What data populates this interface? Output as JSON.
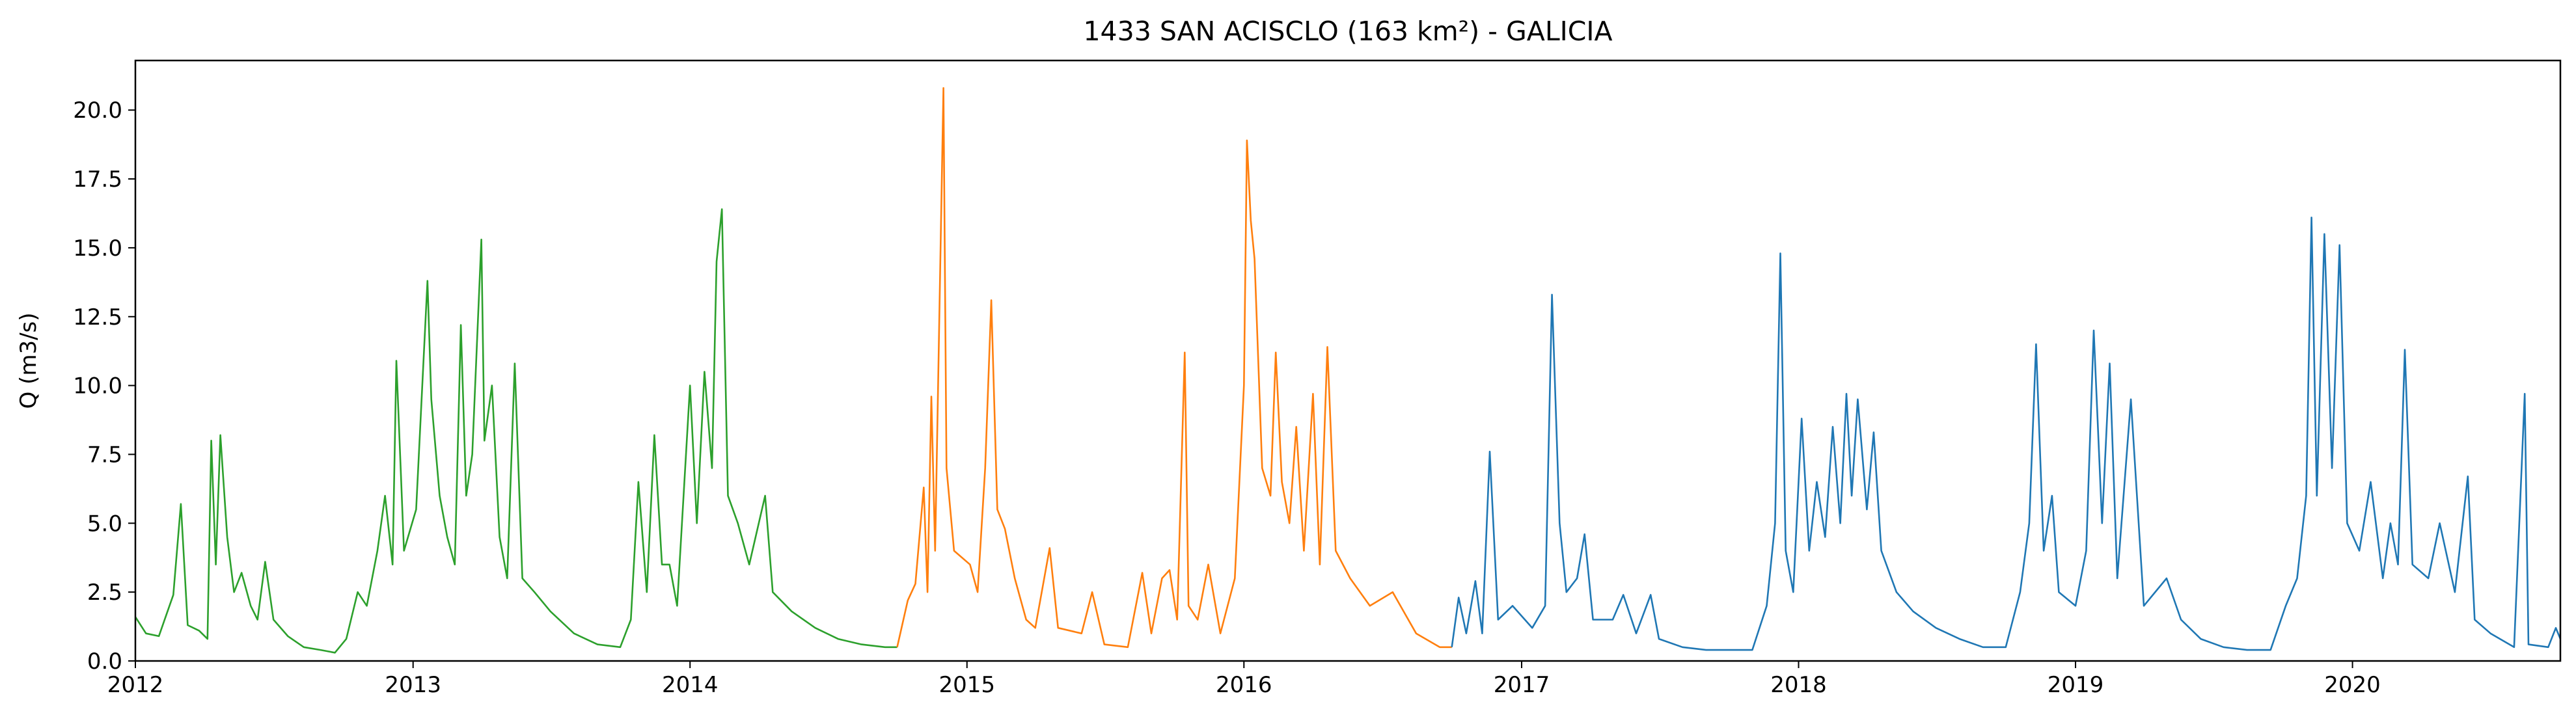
{
  "chart_data": {
    "type": "line",
    "title": "1433 SAN ACISCLO (163 km²) - GALICIA",
    "xlabel": "",
    "ylabel": "Q (m3/s)",
    "xlim": [
      "2012-01-01",
      "2020-10-01"
    ],
    "ylim": [
      0.0,
      21.8
    ],
    "grid": false,
    "legend": "none",
    "x_ticks": [
      "2012",
      "2013",
      "2014",
      "2015",
      "2016",
      "2017",
      "2018",
      "2019",
      "2020"
    ],
    "y_ticks": [
      "0.0",
      "2.5",
      "5.0",
      "7.5",
      "10.0",
      "12.5",
      "15.0",
      "17.5",
      "20.0"
    ],
    "series": [
      {
        "color": "#2ca02c",
        "points": [
          [
            "2012-01-01",
            1.6
          ],
          [
            "2012-01-15",
            1.0
          ],
          [
            "2012-02-01",
            0.9
          ],
          [
            "2012-02-20",
            2.4
          ],
          [
            "2012-03-01",
            5.7
          ],
          [
            "2012-03-10",
            1.3
          ],
          [
            "2012-03-25",
            1.1
          ],
          [
            "2012-04-05",
            0.8
          ],
          [
            "2012-04-10",
            8.0
          ],
          [
            "2012-04-16",
            3.5
          ],
          [
            "2012-04-22",
            8.2
          ],
          [
            "2012-05-01",
            4.5
          ],
          [
            "2012-05-10",
            2.5
          ],
          [
            "2012-05-20",
            3.2
          ],
          [
            "2012-06-01",
            2.0
          ],
          [
            "2012-06-10",
            1.5
          ],
          [
            "2012-06-20",
            3.6
          ],
          [
            "2012-07-01",
            1.5
          ],
          [
            "2012-07-20",
            0.9
          ],
          [
            "2012-08-10",
            0.5
          ],
          [
            "2012-09-01",
            0.4
          ],
          [
            "2012-09-20",
            0.3
          ],
          [
            "2012-10-05",
            0.8
          ],
          [
            "2012-10-20",
            2.5
          ],
          [
            "2012-11-01",
            2.0
          ],
          [
            "2012-11-15",
            4.0
          ],
          [
            "2012-11-25",
            6.0
          ],
          [
            "2012-12-05",
            3.5
          ],
          [
            "2012-12-10",
            10.9
          ],
          [
            "2012-12-20",
            4.0
          ],
          [
            "2013-01-05",
            5.5
          ],
          [
            "2013-01-20",
            13.8
          ],
          [
            "2013-01-25",
            9.5
          ],
          [
            "2013-02-05",
            6.0
          ],
          [
            "2013-02-15",
            4.5
          ],
          [
            "2013-02-25",
            3.5
          ],
          [
            "2013-03-05",
            12.2
          ],
          [
            "2013-03-12",
            6.0
          ],
          [
            "2013-03-20",
            7.5
          ],
          [
            "2013-04-01",
            15.3
          ],
          [
            "2013-04-05",
            8.0
          ],
          [
            "2013-04-15",
            10.0
          ],
          [
            "2013-04-25",
            4.5
          ],
          [
            "2013-05-05",
            3.0
          ],
          [
            "2013-05-15",
            10.8
          ],
          [
            "2013-05-25",
            3.0
          ],
          [
            "2013-06-10",
            2.5
          ],
          [
            "2013-07-01",
            1.8
          ],
          [
            "2013-08-01",
            1.0
          ],
          [
            "2013-09-01",
            0.6
          ],
          [
            "2013-10-01",
            0.5
          ],
          [
            "2013-10-15",
            1.5
          ],
          [
            "2013-10-25",
            6.5
          ],
          [
            "2013-11-05",
            2.5
          ],
          [
            "2013-11-15",
            8.2
          ],
          [
            "2013-11-25",
            3.5
          ],
          [
            "2013-12-05",
            3.5
          ],
          [
            "2013-12-15",
            2.0
          ],
          [
            "2014-01-01",
            10.0
          ],
          [
            "2014-01-10",
            5.0
          ],
          [
            "2014-01-20",
            10.5
          ],
          [
            "2014-01-30",
            7.0
          ],
          [
            "2014-02-05",
            14.5
          ],
          [
            "2014-02-12",
            16.4
          ],
          [
            "2014-02-20",
            6.0
          ],
          [
            "2014-03-05",
            5.0
          ],
          [
            "2014-03-20",
            3.5
          ],
          [
            "2014-04-10",
            6.0
          ],
          [
            "2014-04-20",
            2.5
          ],
          [
            "2014-05-15",
            1.8
          ],
          [
            "2014-06-15",
            1.2
          ],
          [
            "2014-07-15",
            0.8
          ],
          [
            "2014-08-15",
            0.6
          ],
          [
            "2014-09-15",
            0.5
          ],
          [
            "2014-10-01",
            0.5
          ]
        ]
      },
      {
        "color": "#ff7f0e",
        "points": [
          [
            "2014-10-01",
            0.5
          ],
          [
            "2014-10-15",
            2.2
          ],
          [
            "2014-10-25",
            2.8
          ],
          [
            "2014-11-05",
            6.3
          ],
          [
            "2014-11-10",
            2.5
          ],
          [
            "2014-11-15",
            9.6
          ],
          [
            "2014-11-20",
            4.0
          ],
          [
            "2014-12-01",
            20.8
          ],
          [
            "2014-12-05",
            7.0
          ],
          [
            "2014-12-15",
            4.0
          ],
          [
            "2015-01-05",
            3.5
          ],
          [
            "2015-01-15",
            2.5
          ],
          [
            "2015-01-25",
            7.0
          ],
          [
            "2015-02-02",
            13.1
          ],
          [
            "2015-02-10",
            5.5
          ],
          [
            "2015-02-20",
            4.8
          ],
          [
            "2015-03-05",
            3.0
          ],
          [
            "2015-03-20",
            1.5
          ],
          [
            "2015-04-01",
            1.2
          ],
          [
            "2015-04-20",
            4.1
          ],
          [
            "2015-05-01",
            1.2
          ],
          [
            "2015-06-01",
            1.0
          ],
          [
            "2015-06-15",
            2.5
          ],
          [
            "2015-07-01",
            0.6
          ],
          [
            "2015-08-01",
            0.5
          ],
          [
            "2015-08-20",
            3.2
          ],
          [
            "2015-09-01",
            1.0
          ],
          [
            "2015-09-15",
            3.0
          ],
          [
            "2015-09-25",
            3.3
          ],
          [
            "2015-10-05",
            1.5
          ],
          [
            "2015-10-15",
            11.2
          ],
          [
            "2015-10-20",
            2.0
          ],
          [
            "2015-11-01",
            1.5
          ],
          [
            "2015-11-15",
            3.5
          ],
          [
            "2015-12-01",
            1.0
          ],
          [
            "2015-12-20",
            3.0
          ],
          [
            "2016-01-01",
            10.0
          ],
          [
            "2016-01-05",
            18.9
          ],
          [
            "2016-01-10",
            16.0
          ],
          [
            "2016-01-15",
            14.6
          ],
          [
            "2016-01-25",
            7.0
          ],
          [
            "2016-02-05",
            6.0
          ],
          [
            "2016-02-12",
            11.2
          ],
          [
            "2016-02-20",
            6.5
          ],
          [
            "2016-03-01",
            5.0
          ],
          [
            "2016-03-10",
            8.5
          ],
          [
            "2016-03-20",
            4.0
          ],
          [
            "2016-04-01",
            9.7
          ],
          [
            "2016-04-10",
            3.5
          ],
          [
            "2016-04-20",
            11.4
          ],
          [
            "2016-05-01",
            4.0
          ],
          [
            "2016-05-20",
            3.0
          ],
          [
            "2016-06-15",
            2.0
          ],
          [
            "2016-07-15",
            2.5
          ],
          [
            "2016-08-15",
            1.0
          ],
          [
            "2016-09-15",
            0.5
          ],
          [
            "2016-10-01",
            0.5
          ]
        ]
      },
      {
        "color": "#1f77b4",
        "points": [
          [
            "2016-10-01",
            0.5
          ],
          [
            "2016-10-10",
            2.3
          ],
          [
            "2016-10-20",
            1.0
          ],
          [
            "2016-11-01",
            2.9
          ],
          [
            "2016-11-10",
            1.0
          ],
          [
            "2016-11-20",
            7.6
          ],
          [
            "2016-12-01",
            1.5
          ],
          [
            "2016-12-20",
            2.0
          ],
          [
            "2017-01-15",
            1.2
          ],
          [
            "2017-02-01",
            2.0
          ],
          [
            "2017-02-10",
            13.3
          ],
          [
            "2017-02-20",
            5.0
          ],
          [
            "2017-03-01",
            2.5
          ],
          [
            "2017-03-15",
            3.0
          ],
          [
            "2017-03-25",
            4.6
          ],
          [
            "2017-04-05",
            1.5
          ],
          [
            "2017-05-01",
            1.5
          ],
          [
            "2017-05-15",
            2.4
          ],
          [
            "2017-06-01",
            1.0
          ],
          [
            "2017-06-20",
            2.4
          ],
          [
            "2017-07-01",
            0.8
          ],
          [
            "2017-08-01",
            0.5
          ],
          [
            "2017-09-01",
            0.4
          ],
          [
            "2017-10-01",
            0.4
          ],
          [
            "2017-11-01",
            0.4
          ],
          [
            "2017-11-20",
            2.0
          ],
          [
            "2017-12-01",
            5.0
          ],
          [
            "2017-12-08",
            14.8
          ],
          [
            "2017-12-15",
            4.0
          ],
          [
            "2017-12-25",
            2.5
          ],
          [
            "2018-01-05",
            8.8
          ],
          [
            "2018-01-15",
            4.0
          ],
          [
            "2018-01-25",
            6.5
          ],
          [
            "2018-02-05",
            4.5
          ],
          [
            "2018-02-15",
            8.5
          ],
          [
            "2018-02-25",
            5.0
          ],
          [
            "2018-03-05",
            9.7
          ],
          [
            "2018-03-12",
            6.0
          ],
          [
            "2018-03-20",
            9.5
          ],
          [
            "2018-04-01",
            5.5
          ],
          [
            "2018-04-10",
            8.3
          ],
          [
            "2018-04-20",
            4.0
          ],
          [
            "2018-05-10",
            2.5
          ],
          [
            "2018-06-01",
            1.8
          ],
          [
            "2018-07-01",
            1.2
          ],
          [
            "2018-08-01",
            0.8
          ],
          [
            "2018-09-01",
            0.5
          ],
          [
            "2018-10-01",
            0.5
          ],
          [
            "2018-10-20",
            2.5
          ],
          [
            "2018-11-01",
            5.0
          ],
          [
            "2018-11-10",
            11.5
          ],
          [
            "2018-11-20",
            4.0
          ],
          [
            "2018-12-01",
            6.0
          ],
          [
            "2018-12-10",
            2.5
          ],
          [
            "2019-01-01",
            2.0
          ],
          [
            "2019-01-15",
            4.0
          ],
          [
            "2019-01-25",
            12.0
          ],
          [
            "2019-02-05",
            5.0
          ],
          [
            "2019-02-15",
            10.8
          ],
          [
            "2019-02-25",
            3.0
          ],
          [
            "2019-03-15",
            9.5
          ],
          [
            "2019-04-01",
            2.0
          ],
          [
            "2019-05-01",
            3.0
          ],
          [
            "2019-05-20",
            1.5
          ],
          [
            "2019-06-15",
            0.8
          ],
          [
            "2019-07-15",
            0.5
          ],
          [
            "2019-08-15",
            0.4
          ],
          [
            "2019-09-15",
            0.4
          ],
          [
            "2019-10-05",
            2.0
          ],
          [
            "2019-10-20",
            3.0
          ],
          [
            "2019-11-01",
            6.0
          ],
          [
            "2019-11-08",
            16.1
          ],
          [
            "2019-11-15",
            6.0
          ],
          [
            "2019-11-25",
            15.5
          ],
          [
            "2019-12-05",
            7.0
          ],
          [
            "2019-12-15",
            15.1
          ],
          [
            "2019-12-25",
            5.0
          ],
          [
            "2020-01-10",
            4.0
          ],
          [
            "2020-01-25",
            6.5
          ],
          [
            "2020-02-10",
            3.0
          ],
          [
            "2020-02-20",
            5.0
          ],
          [
            "2020-03-01",
            3.5
          ],
          [
            "2020-03-10",
            11.3
          ],
          [
            "2020-03-20",
            3.5
          ],
          [
            "2020-04-10",
            3.0
          ],
          [
            "2020-04-25",
            5.0
          ],
          [
            "2020-05-15",
            2.5
          ],
          [
            "2020-06-01",
            6.7
          ],
          [
            "2020-06-10",
            1.5
          ],
          [
            "2020-07-01",
            1.0
          ],
          [
            "2020-08-01",
            0.5
          ],
          [
            "2020-08-15",
            9.7
          ],
          [
            "2020-08-20",
            0.6
          ],
          [
            "2020-09-15",
            0.5
          ],
          [
            "2020-09-25",
            1.2
          ],
          [
            "2020-10-01",
            0.8
          ]
        ]
      }
    ]
  }
}
